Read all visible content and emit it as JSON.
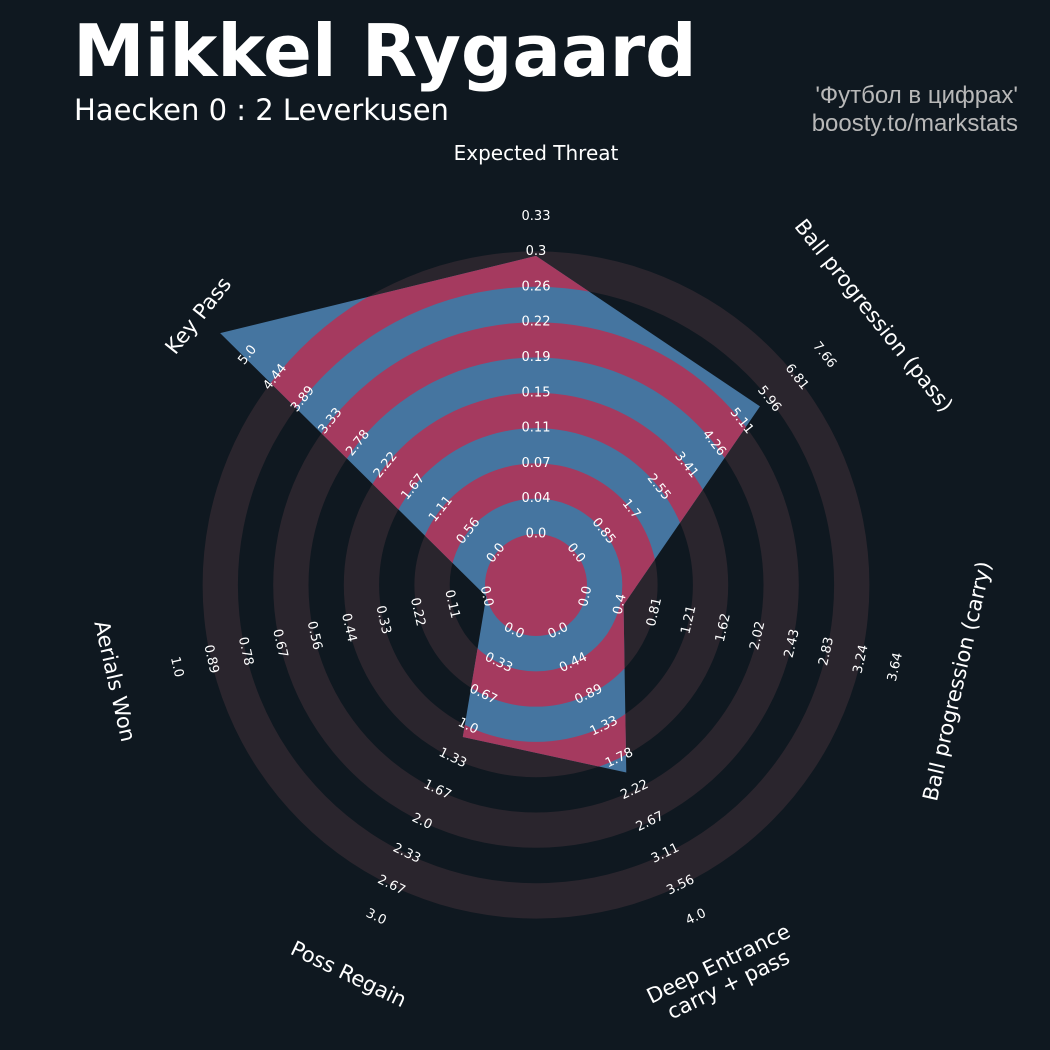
{
  "header": {
    "title": "Mikkel Rygaard",
    "subtitle": "Haecken 0 : 2 Leverkusen",
    "credit_line1": "'Футбол в цифрах'",
    "credit_line2": "boosty.to/markstats"
  },
  "colors": {
    "background": "#0f1820",
    "band": "#2a252d",
    "fill_blue": "#4575a0",
    "fill_pink": "#a53a5f",
    "text": "#ffffff",
    "credit": "#b8b8b8"
  },
  "chart_data": {
    "type": "radar",
    "title": "Mikkel Rygaard",
    "subtitle": "Haecken 0 : 2 Leverkusen",
    "axes": [
      {
        "label": "Expected Threat",
        "ticks": [
          "0.0",
          "0.04",
          "0.07",
          "0.11",
          "0.15",
          "0.19",
          "0.22",
          "0.26",
          "0.3",
          "0.33"
        ],
        "max": 0.33,
        "value": 0.26
      },
      {
        "label": "Ball progression (pass)",
        "ticks": [
          "0.0",
          "0.85",
          "1.7",
          "2.55",
          "3.41",
          "4.26",
          "5.11",
          "5.96",
          "6.81",
          "7.66"
        ],
        "max": 7.66,
        "value": 5.11
      },
      {
        "label": "Ball progression (carry)",
        "ticks": [
          "0.0",
          "0.4",
          "0.81",
          "1.21",
          "1.62",
          "2.02",
          "2.43",
          "2.83",
          "3.24",
          "3.64"
        ],
        "max": 3.64,
        "value": 0.4
      },
      {
        "label": "Deep Entrance\ncarry + pass",
        "ticks": [
          "0.0",
          "0.44",
          "0.89",
          "1.33",
          "1.78",
          "2.22",
          "2.67",
          "3.11",
          "3.56",
          "4.0"
        ],
        "max": 4.0,
        "value": 1.78
      },
      {
        "label": "Poss Regain",
        "ticks": [
          "0.0",
          "0.33",
          "0.67",
          "1.0",
          "1.33",
          "1.67",
          "2.0",
          "2.33",
          "2.67",
          "3.0"
        ],
        "max": 3.0,
        "value": 1.0
      },
      {
        "label": "Aerials Won",
        "ticks": [
          "0.0",
          "0.11",
          "0.22",
          "0.33",
          "0.44",
          "0.56",
          "0.67",
          "0.78",
          "0.89",
          "1.0"
        ],
        "max": 1.0,
        "value": 0.0
      },
      {
        "label": "Key Pass",
        "ticks": [
          "0.0",
          "0.56",
          "1.11",
          "1.67",
          "2.22",
          "2.78",
          "3.33",
          "3.89",
          "4.44",
          "5.0"
        ],
        "max": 5.0,
        "value": 5.0
      }
    ],
    "grid": "alternating bands"
  }
}
